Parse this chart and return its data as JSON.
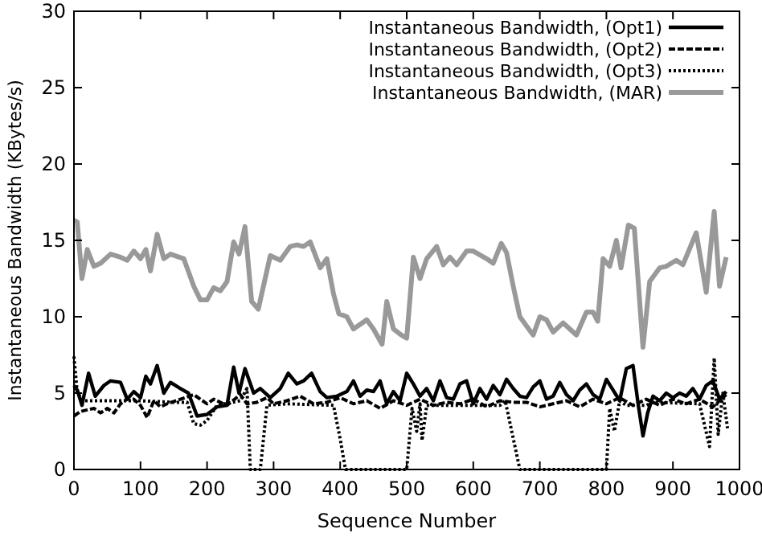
{
  "chart_data": {
    "type": "line",
    "xlabel": "Sequence Number",
    "ylabel": "Instantaneous Bandwidth (KBytes/s)",
    "xlim": [
      0,
      1000
    ],
    "xticks": [
      0,
      100,
      200,
      300,
      400,
      500,
      600,
      700,
      800,
      900,
      1000
    ],
    "ylim": [
      0,
      30
    ],
    "yticks": [
      0,
      5,
      10,
      15,
      20,
      25,
      30
    ],
    "grid": false,
    "legend": "top right",
    "marker": "none",
    "series": [
      {
        "name": "Instantaneous Bandwidth, (Opt1)",
        "color": "#000000",
        "line_style": "solid",
        "x": [
          0,
          5,
          12,
          22,
          32,
          45,
          55,
          70,
          80,
          90,
          100,
          108,
          115,
          125,
          135,
          145,
          160,
          172,
          185,
          200,
          215,
          230,
          240,
          248,
          257,
          270,
          280,
          295,
          310,
          322,
          335,
          345,
          357,
          370,
          380,
          395,
          410,
          420,
          430,
          440,
          450,
          460,
          470,
          480,
          490,
          500,
          510,
          520,
          530,
          540,
          550,
          560,
          570,
          580,
          590,
          600,
          610,
          620,
          630,
          640,
          650,
          660,
          670,
          680,
          690,
          700,
          710,
          720,
          730,
          740,
          750,
          760,
          770,
          780,
          790,
          800,
          810,
          820,
          830,
          840,
          848,
          855,
          862,
          870,
          880,
          890,
          900,
          910,
          920,
          930,
          940,
          950,
          960,
          970,
          980
        ],
        "values": [
          5.5,
          5.2,
          4.2,
          6.3,
          4.8,
          5.5,
          5.8,
          5.7,
          4.6,
          5.1,
          4.7,
          6.1,
          5.6,
          6.8,
          5.0,
          5.7,
          5.3,
          5.0,
          3.5,
          3.6,
          4.1,
          4.2,
          6.7,
          5.0,
          6.6,
          5.0,
          5.3,
          4.7,
          5.3,
          6.3,
          5.6,
          5.8,
          6.3,
          5.1,
          4.7,
          4.8,
          5.1,
          5.8,
          4.8,
          5.2,
          5.1,
          5.8,
          4.3,
          5.1,
          4.5,
          6.3,
          5.6,
          4.8,
          5.3,
          4.5,
          5.8,
          4.7,
          4.6,
          5.6,
          5.8,
          4.3,
          5.3,
          4.6,
          5.5,
          4.9,
          5.9,
          5.3,
          4.8,
          4.7,
          5.4,
          5.8,
          4.6,
          4.8,
          5.7,
          4.9,
          4.5,
          5.2,
          5.6,
          4.9,
          4.6,
          5.9,
          5.2,
          4.5,
          6.6,
          6.8,
          4.2,
          2.2,
          3.7,
          4.8,
          4.5,
          5.0,
          4.7,
          5.0,
          4.8,
          5.3,
          4.6,
          5.5,
          5.8,
          4.6,
          5.1
        ]
      },
      {
        "name": "Instantaneous Bandwidth, (Opt2)",
        "color": "#000000",
        "line_style": "dashed",
        "x": [
          0,
          10,
          20,
          30,
          40,
          50,
          60,
          70,
          80,
          90,
          100,
          110,
          120,
          130,
          140,
          160,
          180,
          200,
          210,
          230,
          250,
          260,
          275,
          290,
          300,
          320,
          340,
          360,
          380,
          400,
          420,
          440,
          460,
          480,
          500,
          520,
          540,
          560,
          580,
          600,
          620,
          640,
          660,
          680,
          700,
          720,
          740,
          760,
          780,
          800,
          820,
          840,
          860,
          880,
          900,
          920,
          940,
          960,
          980
        ],
        "values": [
          3.5,
          3.8,
          3.9,
          4.0,
          3.7,
          4.0,
          3.7,
          4.3,
          4.6,
          4.6,
          4.2,
          3.4,
          4.5,
          4.1,
          4.3,
          4.6,
          4.9,
          4.3,
          4.6,
          4.2,
          4.9,
          4.3,
          4.4,
          4.7,
          4.3,
          4.5,
          4.8,
          4.3,
          4.4,
          4.7,
          4.3,
          4.5,
          4.0,
          4.5,
          4.2,
          4.6,
          4.2,
          4.4,
          4.3,
          4.6,
          4.1,
          4.5,
          4.4,
          4.4,
          4.1,
          4.3,
          4.5,
          4.1,
          4.6,
          4.3,
          4.7,
          4.2,
          4.6,
          4.2,
          4.6,
          4.3,
          4.6,
          4.1,
          4.9
        ]
      },
      {
        "name": "Instantaneous Bandwidth, (Opt3)",
        "color": "#000000",
        "line_style": "dotted",
        "x": [
          0,
          5,
          15,
          30,
          60,
          100,
          150,
          170,
          180,
          190,
          200,
          215,
          250,
          260,
          265,
          272,
          280,
          290,
          320,
          390,
          400,
          408,
          500,
          508,
          515,
          520,
          523,
          530,
          640,
          648,
          670,
          800,
          805,
          812,
          820,
          830,
          860,
          870,
          940,
          955,
          962,
          968,
          975,
          982
        ],
        "values": [
          7.4,
          5.0,
          4.5,
          4.5,
          4.5,
          4.5,
          4.4,
          4.4,
          3.0,
          2.9,
          3.2,
          4.2,
          4.5,
          5.3,
          0,
          0,
          0,
          4.2,
          4.3,
          4.2,
          2.0,
          0,
          0,
          4.0,
          2.5,
          4.3,
          1.9,
          4.2,
          4.2,
          4.5,
          0,
          0,
          4.0,
          2.5,
          4.5,
          4.2,
          4.2,
          4.4,
          4.3,
          1.5,
          7.3,
          2.3,
          5.0,
          2.7
        ]
      },
      {
        "name": "Instantaneous Bandwidth, (MAR)",
        "color": "#999999",
        "line_style": "solid",
        "x": [
          0,
          5,
          12,
          20,
          30,
          40,
          55,
          70,
          80,
          90,
          100,
          108,
          115,
          125,
          135,
          145,
          165,
          180,
          190,
          200,
          210,
          220,
          230,
          240,
          248,
          257,
          267,
          277,
          295,
          310,
          325,
          335,
          345,
          355,
          370,
          380,
          390,
          398,
          410,
          420,
          430,
          440,
          450,
          463,
          470,
          480,
          492,
          500,
          510,
          520,
          530,
          545,
          555,
          565,
          575,
          590,
          600,
          620,
          630,
          642,
          650,
          660,
          670,
          680,
          690,
          700,
          710,
          720,
          735,
          745,
          755,
          770,
          780,
          787,
          795,
          805,
          815,
          822,
          833,
          842,
          855,
          865,
          880,
          890,
          905,
          915,
          935,
          950,
          962,
          970,
          980
        ],
        "values": [
          16.3,
          16.2,
          12.5,
          14.4,
          13.3,
          13.5,
          14.1,
          13.9,
          13.7,
          14.3,
          13.8,
          14.4,
          13.0,
          15.4,
          13.8,
          14.1,
          13.8,
          12.0,
          11.1,
          11.1,
          11.9,
          11.7,
          12.3,
          14.9,
          14.1,
          15.9,
          11.0,
          10.5,
          14.0,
          13.7,
          14.6,
          14.7,
          14.6,
          14.9,
          13.2,
          13.8,
          11.5,
          10.2,
          10.0,
          9.2,
          9.5,
          9.8,
          9.2,
          8.2,
          11.0,
          9.2,
          8.8,
          8.6,
          13.9,
          12.5,
          13.8,
          14.6,
          13.4,
          13.9,
          13.4,
          14.3,
          14.3,
          13.8,
          13.5,
          14.8,
          14.2,
          12.0,
          10.0,
          9.4,
          8.8,
          10.0,
          9.8,
          9.0,
          9.6,
          9.2,
          8.8,
          10.3,
          10.3,
          9.7,
          13.8,
          13.3,
          15.0,
          13.2,
          16.0,
          15.8,
          8.0,
          12.3,
          13.2,
          13.3,
          13.7,
          13.4,
          15.5,
          11.6,
          16.9,
          12.0,
          13.9
        ]
      }
    ]
  }
}
